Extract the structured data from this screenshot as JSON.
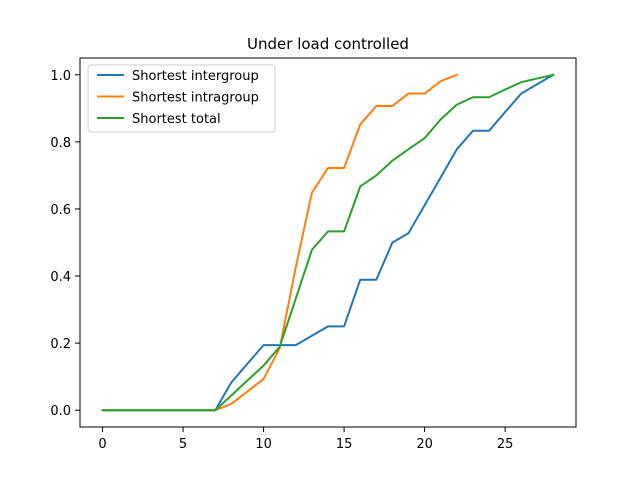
{
  "chart_data": {
    "type": "line",
    "title": "Under load controlled",
    "xlabel": "",
    "ylabel": "",
    "xlim": [
      -1.4,
      29.4
    ],
    "ylim": [
      -0.05,
      1.05
    ],
    "x_ticks": [
      0,
      5,
      10,
      15,
      20,
      25
    ],
    "y_ticks": [
      0.0,
      0.2,
      0.4,
      0.6,
      0.8,
      1.0
    ],
    "x_tick_labels": [
      "0",
      "5",
      "10",
      "15",
      "20",
      "25"
    ],
    "y_tick_labels": [
      "0.0",
      "0.2",
      "0.4",
      "0.6",
      "0.8",
      "1.0"
    ],
    "grid": false,
    "legend_position": "top-left",
    "series": [
      {
        "name": "Shortest intergroup",
        "color": "#1f77b4",
        "x": [
          0,
          1,
          2,
          3,
          4,
          5,
          6,
          7,
          8,
          9,
          10,
          11,
          12,
          13,
          14,
          15,
          16,
          17,
          18,
          19,
          20,
          21,
          22,
          23,
          24,
          25,
          26,
          27,
          28
        ],
        "y": [
          0,
          0,
          0,
          0,
          0,
          0,
          0,
          0,
          0.083,
          0.139,
          0.194,
          0.194,
          0.194,
          0.222,
          0.25,
          0.25,
          0.389,
          0.389,
          0.5,
          0.528,
          0.611,
          0.694,
          0.778,
          0.833,
          0.833,
          0.889,
          0.944,
          0.972,
          1.0
        ]
      },
      {
        "name": "Shortest intragroup",
        "color": "#ff7f0e",
        "x": [
          0,
          1,
          2,
          3,
          4,
          5,
          6,
          7,
          8,
          9,
          10,
          11,
          12,
          13,
          14,
          15,
          16,
          17,
          18,
          19,
          20,
          21,
          22
        ],
        "y": [
          0,
          0,
          0,
          0,
          0,
          0,
          0,
          0,
          0.019,
          0.056,
          0.093,
          0.185,
          0.426,
          0.648,
          0.722,
          0.722,
          0.852,
          0.907,
          0.907,
          0.944,
          0.944,
          0.981,
          1.0
        ]
      },
      {
        "name": "Shortest total",
        "color": "#2ca02c",
        "x": [
          0,
          1,
          2,
          3,
          4,
          5,
          6,
          7,
          8,
          9,
          10,
          11,
          12,
          13,
          14,
          15,
          16,
          17,
          18,
          19,
          20,
          21,
          22,
          23,
          24,
          25,
          26,
          27,
          28
        ],
        "y": [
          0,
          0,
          0,
          0,
          0,
          0,
          0,
          0,
          0.044,
          0.089,
          0.133,
          0.189,
          0.333,
          0.478,
          0.533,
          0.533,
          0.667,
          0.7,
          0.744,
          0.778,
          0.811,
          0.867,
          0.911,
          0.933,
          0.933,
          0.956,
          0.978,
          0.989,
          1.0
        ]
      }
    ]
  }
}
